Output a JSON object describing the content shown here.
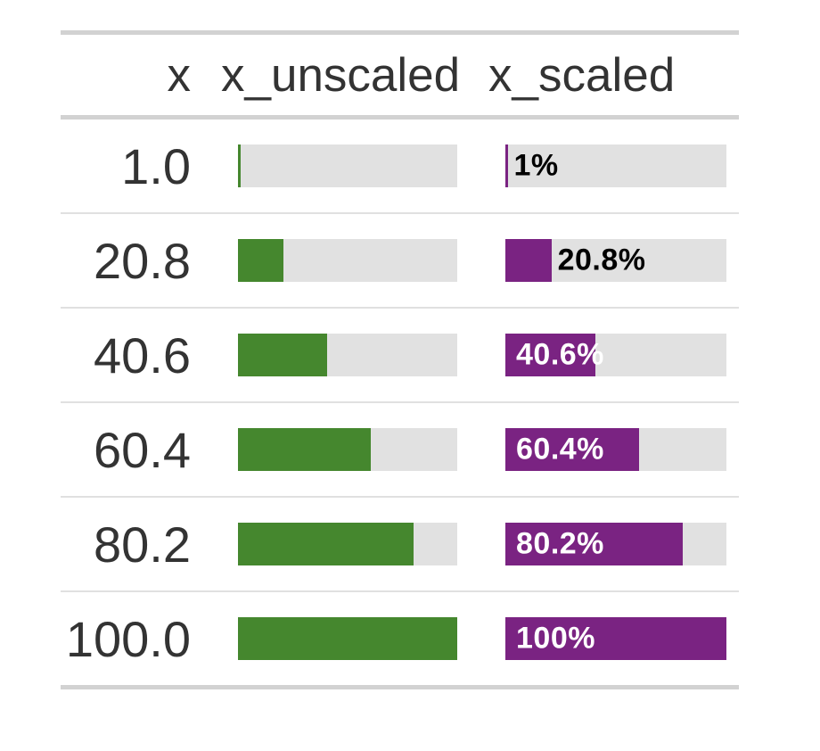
{
  "table": {
    "columns": [
      {
        "id": "x",
        "label": "x"
      },
      {
        "id": "x_unscaled",
        "label": "x_unscaled"
      },
      {
        "id": "x_scaled",
        "label": "x_scaled"
      }
    ],
    "rows": [
      {
        "x": "1.0",
        "unscaled_pct": 1,
        "scaled_pct": 1,
        "scaled_label": "1%",
        "label_position": "outside"
      },
      {
        "x": "20.8",
        "unscaled_pct": 20.8,
        "scaled_pct": 20.8,
        "scaled_label": "20.8%",
        "label_position": "outside"
      },
      {
        "x": "40.6",
        "unscaled_pct": 40.6,
        "scaled_pct": 40.6,
        "scaled_label": "40.6%",
        "label_position": "inside"
      },
      {
        "x": "60.4",
        "unscaled_pct": 60.4,
        "scaled_pct": 60.4,
        "scaled_label": "60.4%",
        "label_position": "inside"
      },
      {
        "x": "80.2",
        "unscaled_pct": 80.2,
        "scaled_pct": 80.2,
        "scaled_label": "80.2%",
        "label_position": "inside"
      },
      {
        "x": "100.0",
        "unscaled_pct": 100,
        "scaled_pct": 100,
        "scaled_label": "100%",
        "label_position": "inside"
      }
    ],
    "colors": {
      "unscaled_fill": "#45872E",
      "scaled_fill": "#7A2382",
      "bar_background": "#E1E1E1",
      "table_border": "#D2D2D2",
      "row_divider": "#E0E0E0",
      "text": "#333333",
      "label_inside": "#FFFFFF",
      "label_outside": "#000000"
    }
  },
  "chart_data": {
    "type": "bar",
    "orientation": "horizontal",
    "title": "",
    "categories": [
      "1.0",
      "20.8",
      "40.6",
      "60.4",
      "80.2",
      "100.0"
    ],
    "series": [
      {
        "name": "x_unscaled",
        "values": [
          1,
          20.8,
          40.6,
          60.4,
          80.2,
          100
        ],
        "unit": "%",
        "color": "#45872E",
        "labels_shown": false
      },
      {
        "name": "x_scaled",
        "values": [
          1,
          20.8,
          40.6,
          60.4,
          80.2,
          100
        ],
        "unit": "%",
        "color": "#7A2382",
        "labels_shown": true,
        "labels": [
          "1%",
          "20.8%",
          "40.6%",
          "60.4%",
          "80.2%",
          "100%"
        ]
      }
    ],
    "xlim": [
      0,
      100
    ],
    "grid": false,
    "legend": false
  }
}
